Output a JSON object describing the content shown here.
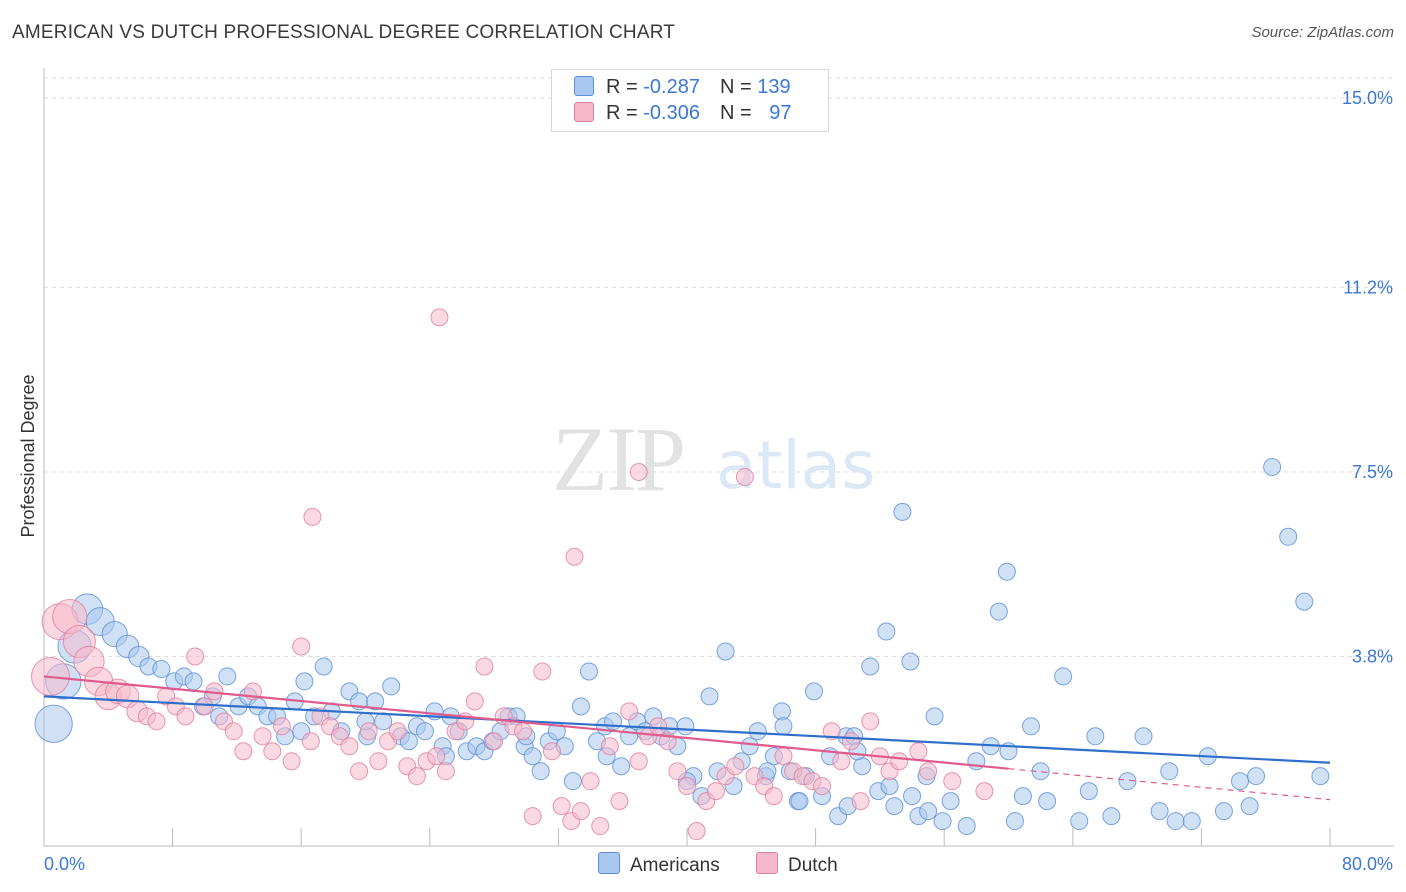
{
  "title": "AMERICAN VS DUTCH PROFESSIONAL DEGREE CORRELATION CHART",
  "source": "Source: ZipAtlas.com",
  "watermark": {
    "zip": "ZIP",
    "atlas": "atlas"
  },
  "legend": {
    "rows": [
      {
        "r_label": "R = ",
        "r_value": "-0.287",
        "n_label": "N = ",
        "n_value": "139"
      },
      {
        "r_label": "R = ",
        "r_value": "-0.306",
        "n_label": "N = ",
        "n_value": "97"
      }
    ],
    "bottom": [
      "Americans",
      "Dutch"
    ]
  },
  "colors": {
    "americans_fill": "#a9c8ef",
    "americans_stroke": "#5b8fd6",
    "americans_line": "#2f6fcc",
    "dutch_fill": "#f6b9cb",
    "dutch_stroke": "#e07ea0",
    "dutch_line": "#e05b8c",
    "axis_label": "#3b78d6",
    "grid": "#dddddd"
  },
  "chart_data": {
    "type": "scatter",
    "title": "AMERICAN VS DUTCH PROFESSIONAL DEGREE CORRELATION CHART",
    "xlabel": "",
    "ylabel": "Professional Degree",
    "xlim": [
      0,
      80
    ],
    "ylim": [
      0,
      15.6
    ],
    "x_ticks": [
      "0.0%",
      "80.0%"
    ],
    "y_ticks": [
      {
        "value": 3.8,
        "label": "3.8%"
      },
      {
        "value": 7.5,
        "label": "7.5%"
      },
      {
        "value": 11.2,
        "label": "11.2%"
      },
      {
        "value": 15.0,
        "label": "15.0%"
      }
    ],
    "grid": true,
    "legend_position": "top-center",
    "series": [
      {
        "name": "Americans",
        "r": -0.287,
        "n": 139,
        "trend": {
          "x": [
            0,
            80
          ],
          "y": [
            3.0,
            1.67
          ]
        },
        "points": [
          [
            0.6,
            2.45
          ],
          [
            1.2,
            3.3
          ],
          [
            1.9,
            4.0
          ],
          [
            2.7,
            4.75
          ],
          [
            3.5,
            4.5
          ],
          [
            4.4,
            4.25
          ],
          [
            5.2,
            4.0
          ],
          [
            5.9,
            3.8
          ],
          [
            6.5,
            3.6
          ],
          [
            7.3,
            3.55
          ],
          [
            8.1,
            3.3
          ],
          [
            8.7,
            3.4
          ],
          [
            9.3,
            3.3
          ],
          [
            9.9,
            2.8
          ],
          [
            10.5,
            3.0
          ],
          [
            10.9,
            2.6
          ],
          [
            11.4,
            3.4
          ],
          [
            12.1,
            2.8
          ],
          [
            12.7,
            3.0
          ],
          [
            13.3,
            2.8
          ],
          [
            13.9,
            2.6
          ],
          [
            14.5,
            2.6
          ],
          [
            15.0,
            2.2
          ],
          [
            15.6,
            2.9
          ],
          [
            16.2,
            3.3
          ],
          [
            16.8,
            2.6
          ],
          [
            17.4,
            3.6
          ],
          [
            17.9,
            2.7
          ],
          [
            18.5,
            2.3
          ],
          [
            19.0,
            3.1
          ],
          [
            19.6,
            2.9
          ],
          [
            20.1,
            2.2
          ],
          [
            20.6,
            2.9
          ],
          [
            21.1,
            2.5
          ],
          [
            21.6,
            3.2
          ],
          [
            22.2,
            2.2
          ],
          [
            22.7,
            2.1
          ],
          [
            23.2,
            2.4
          ],
          [
            23.7,
            2.3
          ],
          [
            24.3,
            2.7
          ],
          [
            24.8,
            2.0
          ],
          [
            25.3,
            2.6
          ],
          [
            25.8,
            2.3
          ],
          [
            26.3,
            1.9
          ],
          [
            26.9,
            2.0
          ],
          [
            27.4,
            1.9
          ],
          [
            27.9,
            2.1
          ],
          [
            28.4,
            2.3
          ],
          [
            28.9,
            2.6
          ],
          [
            29.4,
            2.6
          ],
          [
            29.9,
            2.0
          ],
          [
            30.4,
            1.8
          ],
          [
            30.9,
            1.5
          ],
          [
            31.4,
            2.1
          ],
          [
            31.9,
            2.3
          ],
          [
            32.4,
            2.0
          ],
          [
            32.9,
            1.3
          ],
          [
            33.4,
            2.8
          ],
          [
            33.9,
            3.5
          ],
          [
            34.4,
            2.1
          ],
          [
            34.9,
            2.4
          ],
          [
            35.4,
            2.5
          ],
          [
            35.9,
            1.6
          ],
          [
            36.4,
            2.2
          ],
          [
            36.9,
            2.5
          ],
          [
            37.4,
            2.3
          ],
          [
            37.9,
            2.6
          ],
          [
            38.4,
            2.2
          ],
          [
            38.9,
            2.4
          ],
          [
            39.4,
            2.0
          ],
          [
            39.9,
            2.4
          ],
          [
            40.4,
            1.4
          ],
          [
            40.9,
            1.0
          ],
          [
            41.4,
            3.0
          ],
          [
            41.9,
            1.5
          ],
          [
            42.4,
            3.9
          ],
          [
            42.9,
            1.2
          ],
          [
            43.4,
            1.7
          ],
          [
            43.9,
            2.0
          ],
          [
            44.4,
            2.3
          ],
          [
            44.9,
            1.4
          ],
          [
            45.4,
            1.8
          ],
          [
            45.9,
            2.7
          ],
          [
            46.4,
            1.5
          ],
          [
            46.9,
            0.9
          ],
          [
            47.4,
            1.4
          ],
          [
            47.9,
            3.1
          ],
          [
            48.4,
            1.0
          ],
          [
            48.9,
            1.8
          ],
          [
            49.4,
            0.6
          ],
          [
            49.9,
            2.2
          ],
          [
            50.4,
            2.2
          ],
          [
            50.9,
            1.6
          ],
          [
            51.4,
            3.6
          ],
          [
            51.9,
            1.1
          ],
          [
            52.4,
            4.3
          ],
          [
            52.9,
            0.8
          ],
          [
            53.4,
            6.7
          ],
          [
            53.9,
            3.7
          ],
          [
            54.4,
            0.6
          ],
          [
            54.9,
            1.4
          ],
          [
            55.4,
            2.6
          ],
          [
            55.9,
            0.5
          ],
          [
            56.4,
            0.9
          ],
          [
            57.4,
            0.4
          ],
          [
            58.9,
            2.0
          ],
          [
            59.4,
            4.7
          ],
          [
            59.9,
            5.5
          ],
          [
            60.4,
            0.5
          ],
          [
            60.9,
            1.0
          ],
          [
            61.4,
            2.4
          ],
          [
            62.4,
            0.9
          ],
          [
            63.4,
            3.4
          ],
          [
            64.4,
            0.5
          ],
          [
            65.4,
            2.2
          ],
          [
            66.4,
            0.6
          ],
          [
            67.4,
            1.3
          ],
          [
            68.4,
            2.2
          ],
          [
            69.4,
            0.7
          ],
          [
            70.4,
            0.5
          ],
          [
            71.4,
            0.5
          ],
          [
            72.4,
            1.8
          ],
          [
            73.4,
            0.7
          ],
          [
            74.4,
            1.3
          ],
          [
            75.4,
            1.4
          ],
          [
            76.4,
            7.6
          ],
          [
            77.4,
            6.2
          ],
          [
            78.4,
            4.9
          ],
          [
            79.4,
            1.4
          ],
          [
            16.0,
            2.3
          ],
          [
            20.0,
            2.5
          ],
          [
            25.0,
            1.8
          ],
          [
            30.0,
            2.2
          ],
          [
            35.0,
            1.8
          ],
          [
            40.0,
            1.3
          ],
          [
            45.0,
            1.5
          ],
          [
            50.0,
            0.8
          ],
          [
            55.0,
            0.7
          ],
          [
            60.0,
            1.9
          ],
          [
            65.0,
            1.1
          ],
          [
            70.0,
            1.5
          ],
          [
            75.0,
            0.8
          ],
          [
            46.0,
            2.4
          ],
          [
            50.6,
            1.9
          ],
          [
            52.6,
            1.2
          ],
          [
            54.0,
            1.0
          ],
          [
            58.0,
            1.7
          ],
          [
            62.0,
            1.5
          ],
          [
            47.0,
            0.9
          ]
        ]
      },
      {
        "name": "Dutch",
        "r": -0.306,
        "n": 97,
        "trend": {
          "x": [
            0,
            60
          ],
          "y": [
            3.4,
            1.55
          ]
        },
        "trend_extension": {
          "x": [
            60,
            80
          ],
          "y": [
            1.55,
            0.93
          ]
        },
        "points": [
          [
            0.4,
            3.4
          ],
          [
            1.0,
            4.5
          ],
          [
            1.6,
            4.6
          ],
          [
            2.2,
            4.1
          ],
          [
            2.8,
            3.7
          ],
          [
            3.4,
            3.3
          ],
          [
            4.0,
            3.0
          ],
          [
            4.6,
            3.1
          ],
          [
            5.2,
            3.0
          ],
          [
            5.8,
            2.7
          ],
          [
            6.4,
            2.6
          ],
          [
            7.0,
            2.5
          ],
          [
            7.6,
            3.0
          ],
          [
            8.2,
            2.8
          ],
          [
            8.8,
            2.6
          ],
          [
            9.4,
            3.8
          ],
          [
            10.0,
            2.8
          ],
          [
            10.6,
            3.1
          ],
          [
            11.2,
            2.5
          ],
          [
            11.8,
            2.3
          ],
          [
            12.4,
            1.9
          ],
          [
            13.0,
            3.1
          ],
          [
            13.6,
            2.2
          ],
          [
            14.2,
            1.9
          ],
          [
            14.8,
            2.4
          ],
          [
            15.4,
            1.7
          ],
          [
            16.0,
            4.0
          ],
          [
            16.6,
            2.1
          ],
          [
            17.2,
            2.6
          ],
          [
            17.8,
            2.4
          ],
          [
            18.4,
            2.2
          ],
          [
            19.0,
            2.0
          ],
          [
            19.6,
            1.5
          ],
          [
            20.2,
            2.3
          ],
          [
            20.8,
            1.7
          ],
          [
            21.4,
            2.1
          ],
          [
            22.0,
            2.3
          ],
          [
            22.6,
            1.6
          ],
          [
            23.2,
            1.4
          ],
          [
            23.8,
            1.7
          ],
          [
            24.4,
            1.8
          ],
          [
            25.0,
            1.5
          ],
          [
            25.6,
            2.3
          ],
          [
            26.2,
            2.5
          ],
          [
            26.8,
            2.9
          ],
          [
            27.4,
            3.6
          ],
          [
            28.0,
            2.1
          ],
          [
            28.6,
            2.6
          ],
          [
            29.2,
            2.4
          ],
          [
            29.8,
            2.3
          ],
          [
            30.4,
            0.6
          ],
          [
            31.0,
            3.5
          ],
          [
            31.6,
            1.9
          ],
          [
            32.2,
            0.8
          ],
          [
            32.8,
            0.5
          ],
          [
            33.4,
            0.7
          ],
          [
            34.0,
            1.3
          ],
          [
            34.6,
            0.4
          ],
          [
            35.2,
            2.0
          ],
          [
            35.8,
            0.9
          ],
          [
            36.4,
            2.7
          ],
          [
            37.0,
            1.7
          ],
          [
            37.6,
            2.2
          ],
          [
            38.2,
            2.4
          ],
          [
            38.8,
            2.1
          ],
          [
            39.4,
            1.5
          ],
          [
            40.0,
            1.2
          ],
          [
            40.6,
            0.3
          ],
          [
            41.2,
            0.9
          ],
          [
            41.8,
            1.1
          ],
          [
            42.4,
            1.4
          ],
          [
            43.0,
            1.6
          ],
          [
            43.6,
            7.4
          ],
          [
            44.2,
            1.4
          ],
          [
            44.8,
            1.2
          ],
          [
            45.4,
            1.0
          ],
          [
            46.0,
            1.8
          ],
          [
            46.6,
            1.5
          ],
          [
            47.2,
            1.4
          ],
          [
            47.8,
            1.3
          ],
          [
            48.4,
            1.2
          ],
          [
            49.0,
            2.3
          ],
          [
            49.6,
            1.7
          ],
          [
            50.2,
            2.1
          ],
          [
            50.8,
            0.9
          ],
          [
            51.4,
            2.5
          ],
          [
            52.0,
            1.8
          ],
          [
            52.6,
            1.5
          ],
          [
            53.2,
            1.7
          ],
          [
            54.4,
            1.9
          ],
          [
            55.0,
            1.5
          ],
          [
            56.5,
            1.3
          ],
          [
            58.5,
            1.1
          ],
          [
            16.7,
            6.6
          ],
          [
            24.6,
            10.6
          ],
          [
            33.0,
            5.8
          ],
          [
            37.0,
            7.5
          ]
        ]
      }
    ]
  }
}
